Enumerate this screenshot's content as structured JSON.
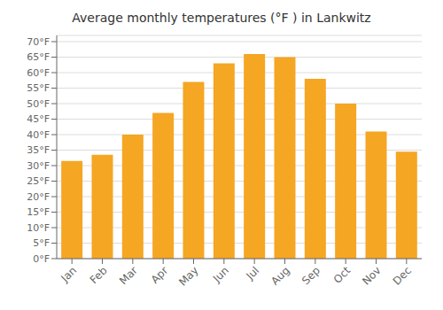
{
  "chart_data": {
    "type": "bar",
    "title": "Average monthly temperatures (°F ) in Lankwitz",
    "categories": [
      "Jan",
      "Feb",
      "Mar",
      "Apr",
      "May",
      "Jun",
      "Jul",
      "Aug",
      "Sep",
      "Oct",
      "Nov",
      "Dec"
    ],
    "values": [
      31.5,
      33.5,
      40.0,
      47.0,
      57.0,
      63.0,
      66.0,
      65.0,
      58.0,
      50.0,
      41.0,
      34.5
    ],
    "color": "#F5A623",
    "ylim": [
      0,
      72
    ],
    "yticks": [
      {
        "value": 0,
        "label": "0°F"
      },
      {
        "value": 5,
        "label": "5°F"
      },
      {
        "value": 10,
        "label": "10°F"
      },
      {
        "value": 15,
        "label": "15°F"
      },
      {
        "value": 20,
        "label": "20°F"
      },
      {
        "value": 25,
        "label": "25°F"
      },
      {
        "value": 30,
        "label": "30°F"
      },
      {
        "value": 35,
        "label": "35°F"
      },
      {
        "value": 40,
        "label": "40°F"
      },
      {
        "value": 45,
        "label": "45°F"
      },
      {
        "value": 50,
        "label": "50°F"
      },
      {
        "value": 55,
        "label": "55°F"
      },
      {
        "value": 60,
        "label": "60°F"
      },
      {
        "value": 65,
        "label": "65°F"
      },
      {
        "value": 70,
        "label": "70°F"
      }
    ],
    "grid": true
  }
}
